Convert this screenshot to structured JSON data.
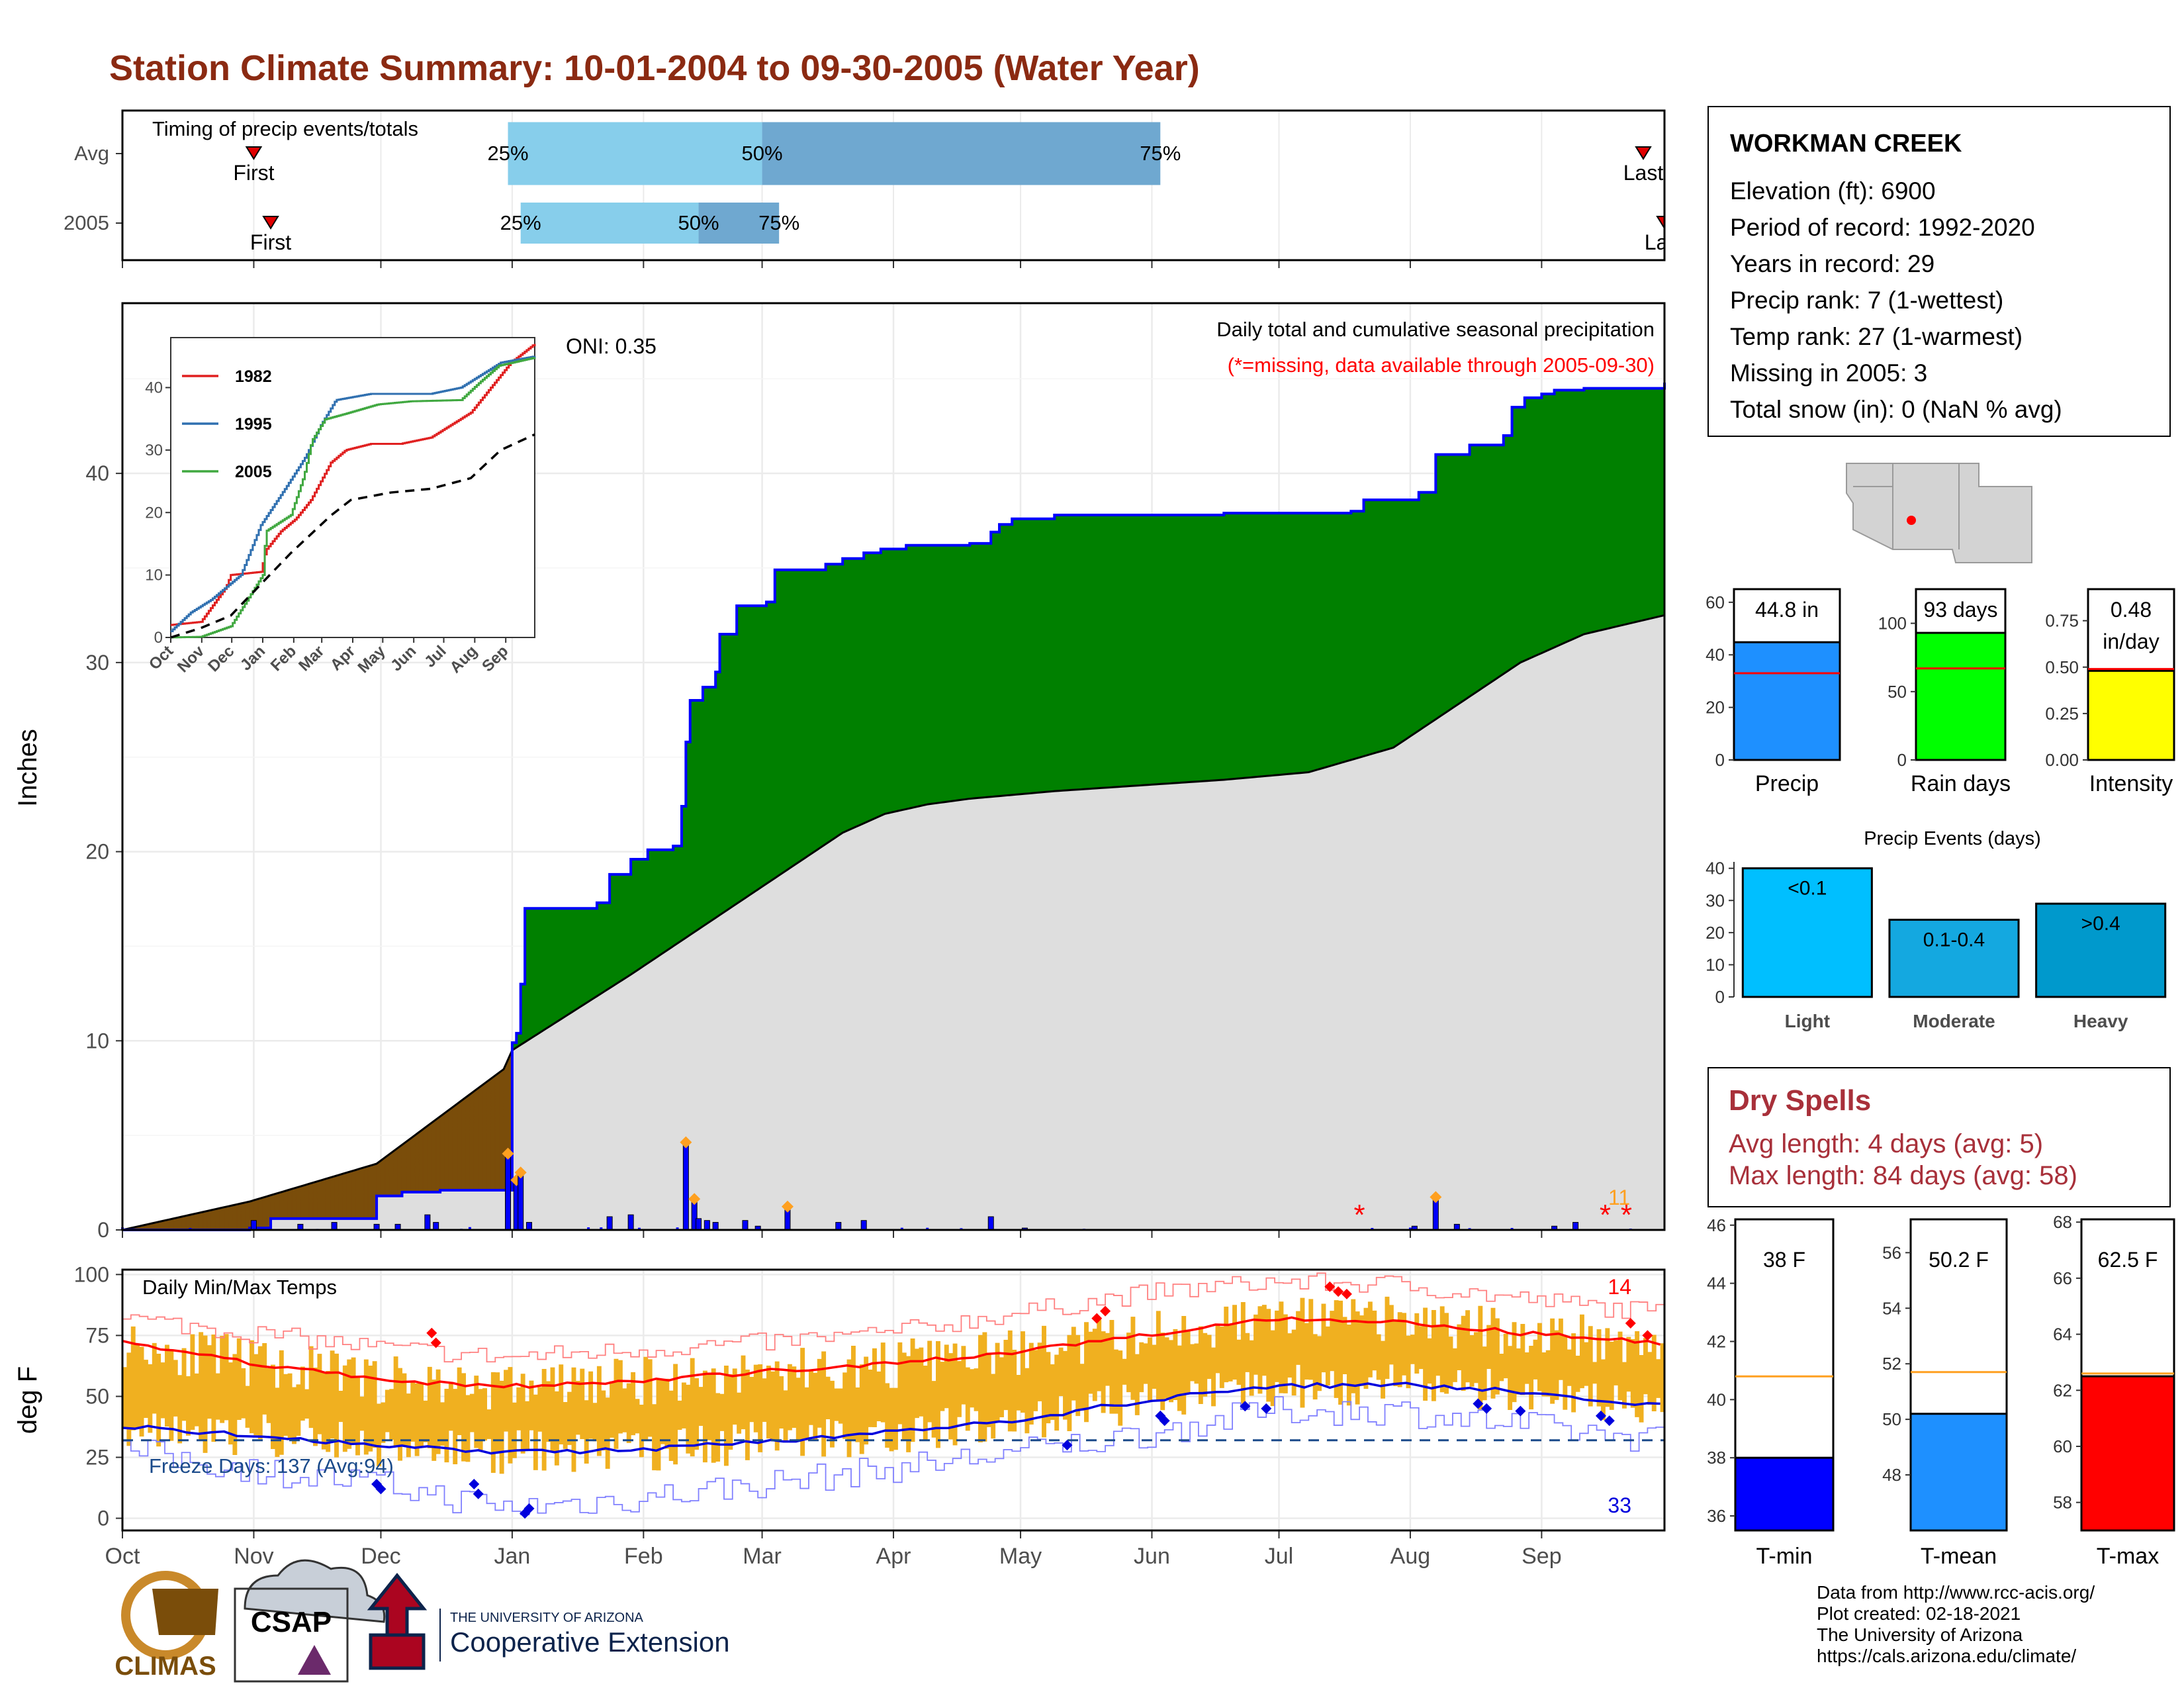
{
  "title": "Station Climate Summary: 10-01-2004 to 09-30-2005 (Water Year)",
  "colors": {
    "title": "#8b2a12",
    "green": "#008000",
    "brown": "#7a4d0a",
    "grey": "#dedede",
    "blue": "#0000ff",
    "orange": "#f0b020",
    "red": "#ff0000",
    "lightblue": "#87ceeb",
    "steel": "#6fa8d0",
    "dry": "#a8303a"
  },
  "station": {
    "name": "WORKMAN CREEK",
    "lines": [
      "Elevation (ft): 6900",
      "Period of record: 1992-2020",
      "Years in record: 29",
      "Precip rank: 7 (1-wettest)",
      "Temp rank: 27 (1-warmest)",
      "Missing in 2005: 3",
      "Total snow (in): 0 (NaN % avg)"
    ]
  },
  "dry_spells": {
    "title": "Dry Spells",
    "avg": "Avg length: 4 days (avg: 5)",
    "max": "Max length: 84 days (avg: 58)"
  },
  "credits": [
    "Data from http://www.rcc-acis.org/",
    "Plot created: 02-18-2021",
    "The University of Arizona",
    "https://cals.arizona.edu/climate/"
  ],
  "logos": {
    "climas": "CLIMAS",
    "csap": "CSAP",
    "ua_small": "THE UNIVERSITY OF ARIZONA",
    "ua_big": "Cooperative Extension"
  },
  "chart_data": [
    {
      "type": "timing",
      "title": "Timing of precip events/totals",
      "rows": [
        {
          "label": "Avg",
          "first": "First",
          "last": "Last",
          "q25": "25%",
          "q50": "50%",
          "q75": "75%",
          "first_date": "2004-11-01",
          "last_date": "2005-09-25",
          "p25": "2004-12-31",
          "p50": "2005-03-01",
          "p75": "2005-06-03"
        },
        {
          "label": "2005",
          "first": "First",
          "last": "Last",
          "q25": "25%",
          "q50": "50%",
          "q75": "75%",
          "first_date": "2004-11-05",
          "last_date": "2005-09-30",
          "p25": "2005-01-03",
          "p50": "2005-02-14",
          "p75": "2005-03-05"
        }
      ]
    },
    {
      "type": "area",
      "ylabel": "Inches",
      "annotation": "Daily total and cumulative seasonal precipitation",
      "missing_note": "(*=missing, data available through 2005-09-30)",
      "oni": "ONI: 0.35",
      "extreme_count": "11",
      "ylim": [
        0,
        49
      ],
      "yticks": [
        0,
        10,
        20,
        30,
        40
      ],
      "month_ticks": [
        "Oct",
        "Nov",
        "Dec",
        "Jan",
        "Feb",
        "Mar",
        "Apr",
        "May",
        "Jun",
        "Jul",
        "Aug",
        "Sep"
      ],
      "cumulative_2005": [
        [
          0,
          0
        ],
        [
          30,
          0.1
        ],
        [
          35,
          0.6
        ],
        [
          60,
          1.8
        ],
        [
          66,
          2.0
        ],
        [
          75,
          2.1
        ],
        [
          92,
          9.9
        ],
        [
          93,
          10.4
        ],
        [
          94,
          13.0
        ],
        [
          95,
          17.0
        ],
        [
          112,
          17.3
        ],
        [
          115,
          18.8
        ],
        [
          120,
          19.6
        ],
        [
          124,
          20.1
        ],
        [
          130,
          20.3
        ],
        [
          132,
          22.4
        ],
        [
          133,
          25.8
        ],
        [
          134,
          28.0
        ],
        [
          137,
          28.7
        ],
        [
          140,
          29.5
        ],
        [
          141,
          31.5
        ],
        [
          145,
          33.0
        ],
        [
          152,
          33.2
        ],
        [
          154,
          34.9
        ],
        [
          166,
          35.2
        ],
        [
          170,
          35.5
        ],
        [
          175,
          35.8
        ],
        [
          179,
          36.0
        ],
        [
          185,
          36.2
        ],
        [
          200,
          36.3
        ],
        [
          205,
          36.9
        ],
        [
          207,
          37.3
        ],
        [
          210,
          37.6
        ],
        [
          220,
          37.8
        ],
        [
          240,
          37.8
        ],
        [
          260,
          37.9
        ],
        [
          290,
          38.0
        ],
        [
          293,
          38.6
        ],
        [
          306,
          39.0
        ],
        [
          310,
          41.0
        ],
        [
          318,
          41.5
        ],
        [
          326,
          42.0
        ],
        [
          328,
          43.5
        ],
        [
          331,
          44.0
        ],
        [
          335,
          44.2
        ],
        [
          338,
          44.4
        ],
        [
          345,
          44.5
        ],
        [
          364,
          44.8
        ]
      ],
      "cumulative_avg": [
        [
          0,
          0
        ],
        [
          30,
          1.5
        ],
        [
          60,
          3.5
        ],
        [
          90,
          8.5
        ],
        [
          92,
          9.5
        ],
        [
          120,
          13.5
        ],
        [
          140,
          16.5
        ],
        [
          160,
          19.5
        ],
        [
          170,
          21.0
        ],
        [
          180,
          22.0
        ],
        [
          190,
          22.5
        ],
        [
          200,
          22.8
        ],
        [
          220,
          23.2
        ],
        [
          240,
          23.5
        ],
        [
          260,
          23.8
        ],
        [
          280,
          24.2
        ],
        [
          300,
          25.5
        ],
        [
          310,
          27.0
        ],
        [
          320,
          28.5
        ],
        [
          330,
          30.0
        ],
        [
          345,
          31.5
        ],
        [
          364,
          32.5
        ]
      ],
      "daily_spikes": [
        [
          31,
          0.5
        ],
        [
          42,
          0.3
        ],
        [
          50,
          0.4
        ],
        [
          60,
          0.3
        ],
        [
          65,
          0.3
        ],
        [
          72,
          0.8
        ],
        [
          74,
          0.4
        ],
        [
          91,
          4.0
        ],
        [
          93,
          2.6
        ],
        [
          94,
          3.0
        ],
        [
          96,
          0.4
        ],
        [
          115,
          0.7
        ],
        [
          120,
          0.8
        ],
        [
          133,
          4.6
        ],
        [
          135,
          1.6
        ],
        [
          136,
          0.6
        ],
        [
          138,
          0.5
        ],
        [
          140,
          0.4
        ],
        [
          147,
          0.5
        ],
        [
          150,
          0.2
        ],
        [
          157,
          1.2
        ],
        [
          169,
          0.4
        ],
        [
          175,
          0.5
        ],
        [
          205,
          0.7
        ],
        [
          213,
          0.1
        ],
        [
          305,
          0.2
        ],
        [
          310,
          1.7
        ],
        [
          315,
          0.3
        ],
        [
          338,
          0.2
        ],
        [
          343,
          0.4
        ]
      ],
      "inset": {
        "yticks": [
          0,
          10,
          20,
          30,
          40
        ],
        "months": [
          "Oct",
          "Nov",
          "Dec",
          "Jan",
          "Feb",
          "Mar",
          "Apr",
          "May",
          "Jun",
          "Jul",
          "Aug",
          "Sep"
        ],
        "series": [
          {
            "name": "1982",
            "color": "#e02020",
            "points": [
              [
                0,
                2
              ],
              [
                30,
                2.5
              ],
              [
                55,
                8
              ],
              [
                60,
                10
              ],
              [
                90,
                10.5
              ],
              [
                95,
                14
              ],
              [
                110,
                17
              ],
              [
                125,
                19
              ],
              [
                140,
                22
              ],
              [
                150,
                25
              ],
              [
                160,
                28
              ],
              [
                175,
                30
              ],
              [
                200,
                31
              ],
              [
                230,
                31
              ],
              [
                260,
                32
              ],
              [
                300,
                36
              ],
              [
                320,
                40
              ],
              [
                340,
                44
              ],
              [
                364,
                47
              ]
            ]
          },
          {
            "name": "1995",
            "color": "#3070b0",
            "points": [
              [
                0,
                1
              ],
              [
                20,
                4
              ],
              [
                40,
                6
              ],
              [
                70,
                10
              ],
              [
                90,
                18
              ],
              [
                115,
                24
              ],
              [
                135,
                29
              ],
              [
                150,
                34
              ],
              [
                165,
                38
              ],
              [
                200,
                39
              ],
              [
                230,
                39
              ],
              [
                260,
                39
              ],
              [
                290,
                40
              ],
              [
                310,
                42
              ],
              [
                330,
                44
              ],
              [
                364,
                45
              ]
            ]
          },
          {
            "name": "2005",
            "color": "#40a840",
            "points": [
              [
                0,
                0
              ],
              [
                30,
                0.1
              ],
              [
                60,
                1.8
              ],
              [
                92,
                10
              ],
              [
                95,
                17
              ],
              [
                120,
                19.6
              ],
              [
                133,
                25.8
              ],
              [
                141,
                31.5
              ],
              [
                154,
                34.9
              ],
              [
                179,
                36
              ],
              [
                207,
                37.3
              ],
              [
                240,
                37.8
              ],
              [
                290,
                38
              ],
              [
                310,
                41
              ],
              [
                328,
                43.5
              ],
              [
                364,
                44.8
              ]
            ]
          },
          {
            "name": "",
            "color": "#000000",
            "dashed": true,
            "points": [
              [
                0,
                0
              ],
              [
                30,
                1.5
              ],
              [
                60,
                3.5
              ],
              [
                90,
                8.5
              ],
              [
                120,
                13.5
              ],
              [
                160,
                19.5
              ],
              [
                180,
                22
              ],
              [
                220,
                23.2
              ],
              [
                260,
                23.8
              ],
              [
                300,
                25.5
              ],
              [
                330,
                30
              ],
              [
                364,
                32.5
              ]
            ]
          }
        ]
      }
    },
    {
      "type": "line",
      "title": "Daily Min/Max Temps",
      "ylabel": "deg F",
      "freeze": "Freeze Days: 137 (Avg:94)",
      "max_extreme_count": "14",
      "min_extreme_count": "33",
      "ylim": [
        -5,
        102
      ],
      "yticks": [
        0,
        25,
        50,
        75,
        100
      ],
      "freeze_line": 32,
      "month_ticks": [
        "Oct",
        "Nov",
        "Dec",
        "Jan",
        "Feb",
        "Mar",
        "Apr",
        "May",
        "Jun",
        "Jul",
        "Aug",
        "Sep"
      ],
      "avg_max": [
        [
          0,
          72
        ],
        [
          30,
          64
        ],
        [
          60,
          57
        ],
        [
          90,
          54
        ],
        [
          120,
          56
        ],
        [
          150,
          60
        ],
        [
          180,
          63
        ],
        [
          210,
          68
        ],
        [
          240,
          75
        ],
        [
          270,
          82
        ],
        [
          300,
          81
        ],
        [
          330,
          76
        ],
        [
          364,
          72
        ]
      ],
      "avg_min": [
        [
          0,
          38
        ],
        [
          30,
          34
        ],
        [
          60,
          30
        ],
        [
          90,
          27
        ],
        [
          120,
          28
        ],
        [
          150,
          31
        ],
        [
          180,
          35
        ],
        [
          210,
          40
        ],
        [
          240,
          48
        ],
        [
          270,
          54
        ],
        [
          300,
          55
        ],
        [
          330,
          52
        ],
        [
          364,
          46
        ]
      ],
      "max_record": [
        [
          0,
          82
        ],
        [
          30,
          76
        ],
        [
          60,
          70
        ],
        [
          90,
          66
        ],
        [
          120,
          69
        ],
        [
          150,
          72
        ],
        [
          180,
          76
        ],
        [
          210,
          84
        ],
        [
          240,
          92
        ],
        [
          270,
          97
        ],
        [
          300,
          96
        ],
        [
          330,
          90
        ],
        [
          364,
          84
        ]
      ],
      "min_record": [
        [
          0,
          28
        ],
        [
          30,
          20
        ],
        [
          60,
          14
        ],
        [
          90,
          4
        ],
        [
          120,
          8
        ],
        [
          150,
          14
        ],
        [
          180,
          20
        ],
        [
          210,
          27
        ],
        [
          240,
          34
        ],
        [
          270,
          44
        ],
        [
          300,
          44
        ],
        [
          330,
          38
        ],
        [
          364,
          32
        ]
      ]
    },
    {
      "type": "bar",
      "panel": "totals",
      "bars": [
        {
          "label": "Precip",
          "value": 44.8,
          "value_label": "44.8 in",
          "avg": 33,
          "color": "#1e90ff",
          "ylim": [
            0,
            65
          ],
          "yticks": [
            0,
            20,
            40,
            60
          ]
        },
        {
          "label": "Rain days",
          "value": 93,
          "value_label": "93 days",
          "avg": 67,
          "color": "#00ff00",
          "ylim": [
            0,
            125
          ],
          "yticks": [
            0,
            50,
            100
          ]
        },
        {
          "label": "Intensity",
          "value": 0.48,
          "value_label": "0.48 in/day",
          "avg": 0.49,
          "color": "#ffff00",
          "ylim": [
            0,
            0.92
          ],
          "yticks": [
            0.0,
            0.25,
            0.5,
            0.75
          ],
          "tick_labels": [
            "0.00",
            "0.25",
            "0.50",
            "0.75"
          ]
        }
      ]
    },
    {
      "type": "bar",
      "title": "Precip Events (days)",
      "categories": [
        "Light",
        "Moderate",
        "Heavy"
      ],
      "category_labels": [
        "<0.1",
        "0.1-0.4",
        ">0.4"
      ],
      "values": [
        40,
        24,
        29
      ],
      "colors": [
        "#00bfff",
        "#14a8e0",
        "#0099cc"
      ],
      "ylim": [
        0,
        42
      ],
      "yticks": [
        0,
        10,
        20,
        30,
        40
      ]
    },
    {
      "type": "bar",
      "panel": "temps",
      "bars": [
        {
          "label": "T-min",
          "value": 38,
          "value_label": "38 F",
          "avg": 40.8,
          "color": "#0000ff",
          "ylim": [
            35.5,
            46.2
          ],
          "yticks": [
            36,
            38,
            40,
            42,
            44,
            46
          ]
        },
        {
          "label": "T-mean",
          "value": 50.2,
          "value_label": "50.2 F",
          "avg": 51.7,
          "color": "#1e90ff",
          "ylim": [
            46,
            57.2
          ],
          "yticks": [
            48,
            50,
            52,
            54,
            56
          ]
        },
        {
          "label": "T-max",
          "value": 62.5,
          "value_label": "62.5 F",
          "avg": 62.6,
          "color": "#ff0000",
          "ylim": [
            57,
            68.1
          ],
          "yticks": [
            58,
            60,
            62,
            64,
            66,
            68
          ]
        }
      ]
    }
  ]
}
